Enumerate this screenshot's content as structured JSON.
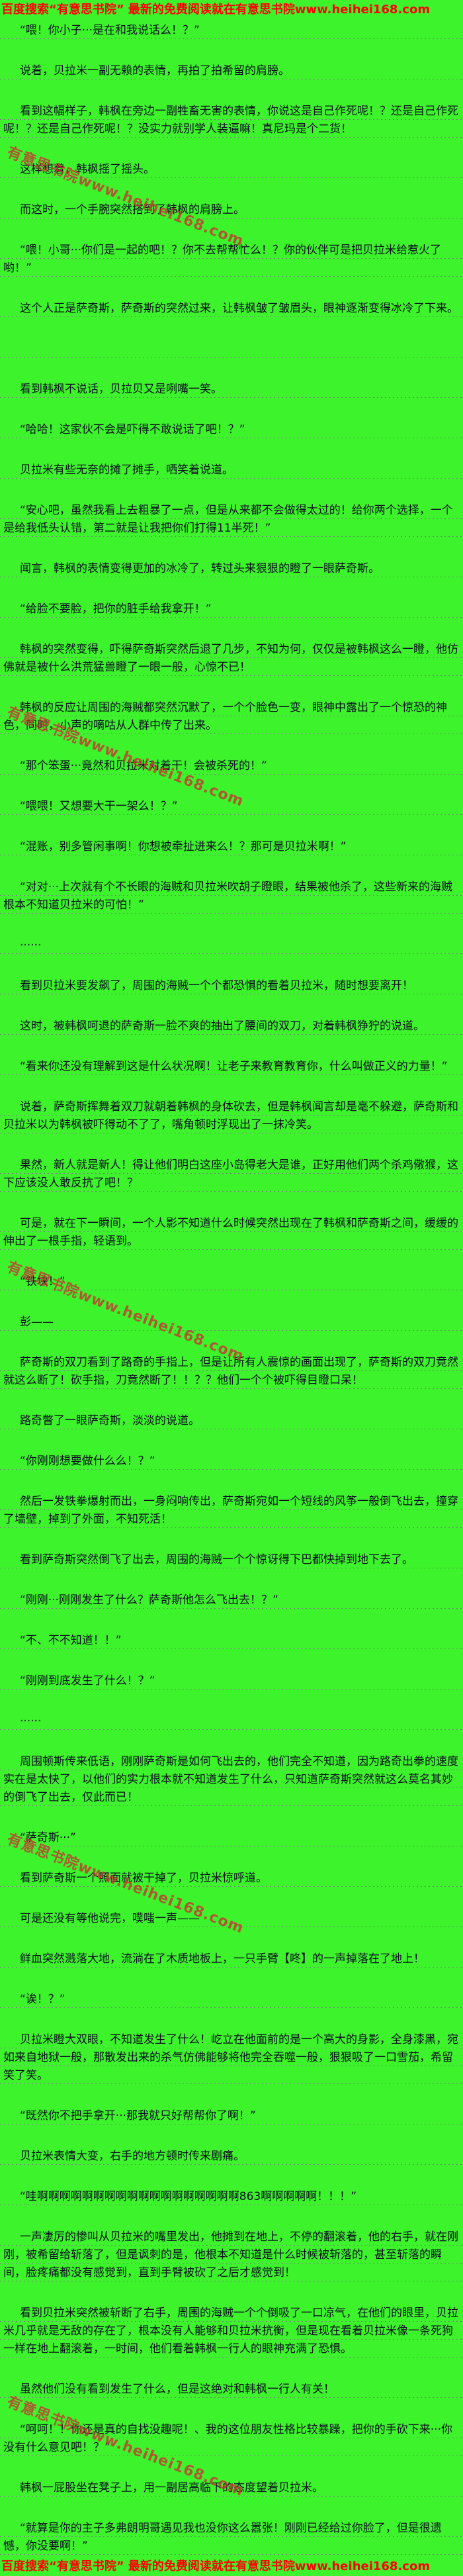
{
  "site_notice": {
    "header": "百度搜索“有意思书院” 最新的免费阅读就在有意思书院www.heihei168.com",
    "footer": "百度搜索“有意思书院” 最新的免费阅读就在有意思书院www.heihei168.com"
  },
  "watermark": {
    "text": "有意思书院www.heihei168.com"
  },
  "colors": {
    "background": "#3df32b",
    "text": "#0c0c20",
    "notice_red": "#fe0000",
    "watermark_red": "#cd2d32",
    "dotted_line": "#7c7c84"
  },
  "content": {
    "paragraphs": [
      "“喂！你小子···是在和我说话么！？”",
      "说着，贝拉米一副无赖的表情，再拍了拍希留的肩膀。",
      "看到这幅样子，韩枫在旁边一副牲畜无害的表情，你说这是自己作死呢！？还是自己作死呢！？还是自己作死呢！？没实力就别学人装逼嘛！真尼玛是个二货！",
      "这样想着，韩枫摇了摇头。",
      "而这时，一个手腕突然搭到了韩枫的肩膀上。",
      "“喂！小哥···你们是一起的吧！？你不去帮帮忙么！？你的伙伴可是把贝拉米给惹火了哟！”",
      "这个人正是萨奇斯，萨奇斯的突然过来，让韩枫皱了皱眉头，眼神逐渐变得冰冷了下来。",
      "",
      "看到韩枫不说话，贝拉贝又是咧嘴一笑。",
      "“哈哈！这家伙不会是吓得不敢说话了吧！？”",
      "贝拉米有些无奈的摊了摊手，哂笑着说道。",
      "“安心吧，虽然我看上去粗暴了一点，但是从来都不会做得太过的！给你两个选择，一个是给我低头认错，第二就是让我把你们打得11半死！”",
      "闻言，韩枫的表情变得更加的冰冷了，转过头来狠狠的瞪了一眼萨奇斯。",
      "“给脸不要脸，把你的脏手给我拿开！”",
      "韩枫的突然变得，吓得萨奇斯突然后退了几步，不知为何，仅仅是被韩枫这么一瞪，他仿佛就是被什么洪荒猛兽瞪了一眼一般，心惊不已！",
      "韩枫的反应让周围的海贼都突然沉默了，一个个脸色一变，眼神中露出了一个惊恐的神色，同时，小声的嘀咕从人群中传了出来。",
      "“那个笨蛋···竟然和贝拉米对着干！会被杀死的！”",
      "“喂喂！又想要大干一架么！？”",
      "“混账，别多管闲事啊！你想被牵扯进来么！？那可是贝拉米啊！”",
      "“对对···上次就有个不长眼的海贼和贝拉米吹胡子瞪眼，结果被他杀了，这些新来的海贼根本不知道贝拉米的可怕！”",
      "······",
      "看到贝拉米要发飙了，周围的海贼一个个都恐惧的看着贝拉米，随时想要离开！",
      "这时，被韩枫呵退的萨奇斯一脸不爽的抽出了腰间的双刀，对着韩枫狰狞的说道。",
      "“看来你还没有理解到这是什么状况啊！让老子来教育教育你，什么叫做正义的力量！”",
      "说着，萨奇斯挥舞着双刀就朝着韩枫的身体砍去，但是韩枫闻言却是毫不躲避，萨奇斯和贝拉米以为韩枫被吓得动不了了，嘴角顿时浮现出了一抹冷笑。",
      "果然，新人就是新人！得让他们明白这座小岛得老大是谁，正好用他们两个杀鸡儆猴，这下应该没人敢反抗了吧！？",
      "可是，就在下一瞬间，一个人影不知道什么时候突然出现在了韩枫和萨奇斯之间，缓缓的伸出了一根手指，轻语到。",
      "“铁块！”",
      "彭——",
      "萨奇斯的双刀看到了路奇的手指上，但是让所有人震惊的画面出现了，萨奇斯的双刀竟然就这么断了！砍手指，刀竟然断了！！？？他们一个个被吓得目瞪口呆！",
      "路奇瞥了一眼萨奇斯，淡淡的说道。",
      "“你刚刚想要做什么么！？”",
      "然后一发铁拳爆射而出，一身闷响传出，萨奇斯宛如一个短线的风筝一般倒飞出去，撞穿了墙壁，掉到了外面，不知死活！",
      "看到萨奇斯突然倒飞了出去，周围的海贼一个个惊讶得下巴都快掉到地下去了。",
      "“刚刚···刚刚发生了什么？萨奇斯他怎么飞出去！？”",
      "“不、不不知道！！”",
      "“刚刚到底发生了什么！？”",
      "······",
      "周围顿斯传来低语，刚刚萨奇斯是如何飞出去的，他们完全不知道，因为路奇出拳的速度实在是太快了，以他们的实力根本就不知道发生了什么，只知道萨奇斯突然就这么莫名其妙的倒飞了出去，仅此而已！",
      "“萨奇斯···”",
      "看到萨奇斯一个照面就被干掉了，贝拉米惊呼道。",
      "可是还没有等他说完，噗嗤一声——",
      "鲜血突然溅落大地，流淌在了木质地板上，一只手臂【咚】的一声掉落在了地上！",
      "“诶！？”",
      "贝拉米瞪大双眼，不知道发生了什么！屹立在他面前的是一个高大的身影，全身漆黑，宛如来自地狱一般，那散发出来的杀气仿佛能够将他完全吞噬一般，狠狠吸了一口雪茄，希留笑了笑。",
      "“既然你不把手拿开···那我就只好帮帮你了啊！”",
      "贝拉米表情大变，右手的地方顿时传来剧痛。",
      "“哇啊啊啊啊啊啊啊啊啊啊啊啊啊啊啊啊啊啊863啊啊啊啊啊！！！”",
      "一声凄厉的惨叫从贝拉米的嘴里发出，他摊到在地上，不停的翻滚着，他的右手，就在刚刚，被希留给斩落了，但是讽刺的是，他根本不知道是什么时候被斩落的，甚至斩落的瞬间，脸疼痛都没有感觉到，直到手臂被砍了之后才感觉到！",
      "看到贝拉米突然被斩断了右手，周围的海贼一个个倒吸了一口凉气，在他们的眼里，贝拉米几乎就是无敌的存在了，根本没有人能够和贝拉米抗衡，但是现在看着贝拉米像一条死狗一样在地上翻滚着，一时间，他们看着韩枫一行人的眼神充满了恐惧。",
      "虽然他们没有看到发生了什么，但是这绝对和韩枫一行人有关！",
      "“呵呵！！你还是真的自找没趣呢！、我的这位朋友性格比较暴躁，把你的手砍下来···你没有什么意见吧！？”",
      "韩枫一屁股坐在凳子上，用一副居高临下的态度望着贝拉米。",
      "“就算是你的主子多弗朗明哥遇见我也没你这么嚣张！刚刚已经给过你脸了，但是很遗憾，你没要啊！”"
    ]
  }
}
